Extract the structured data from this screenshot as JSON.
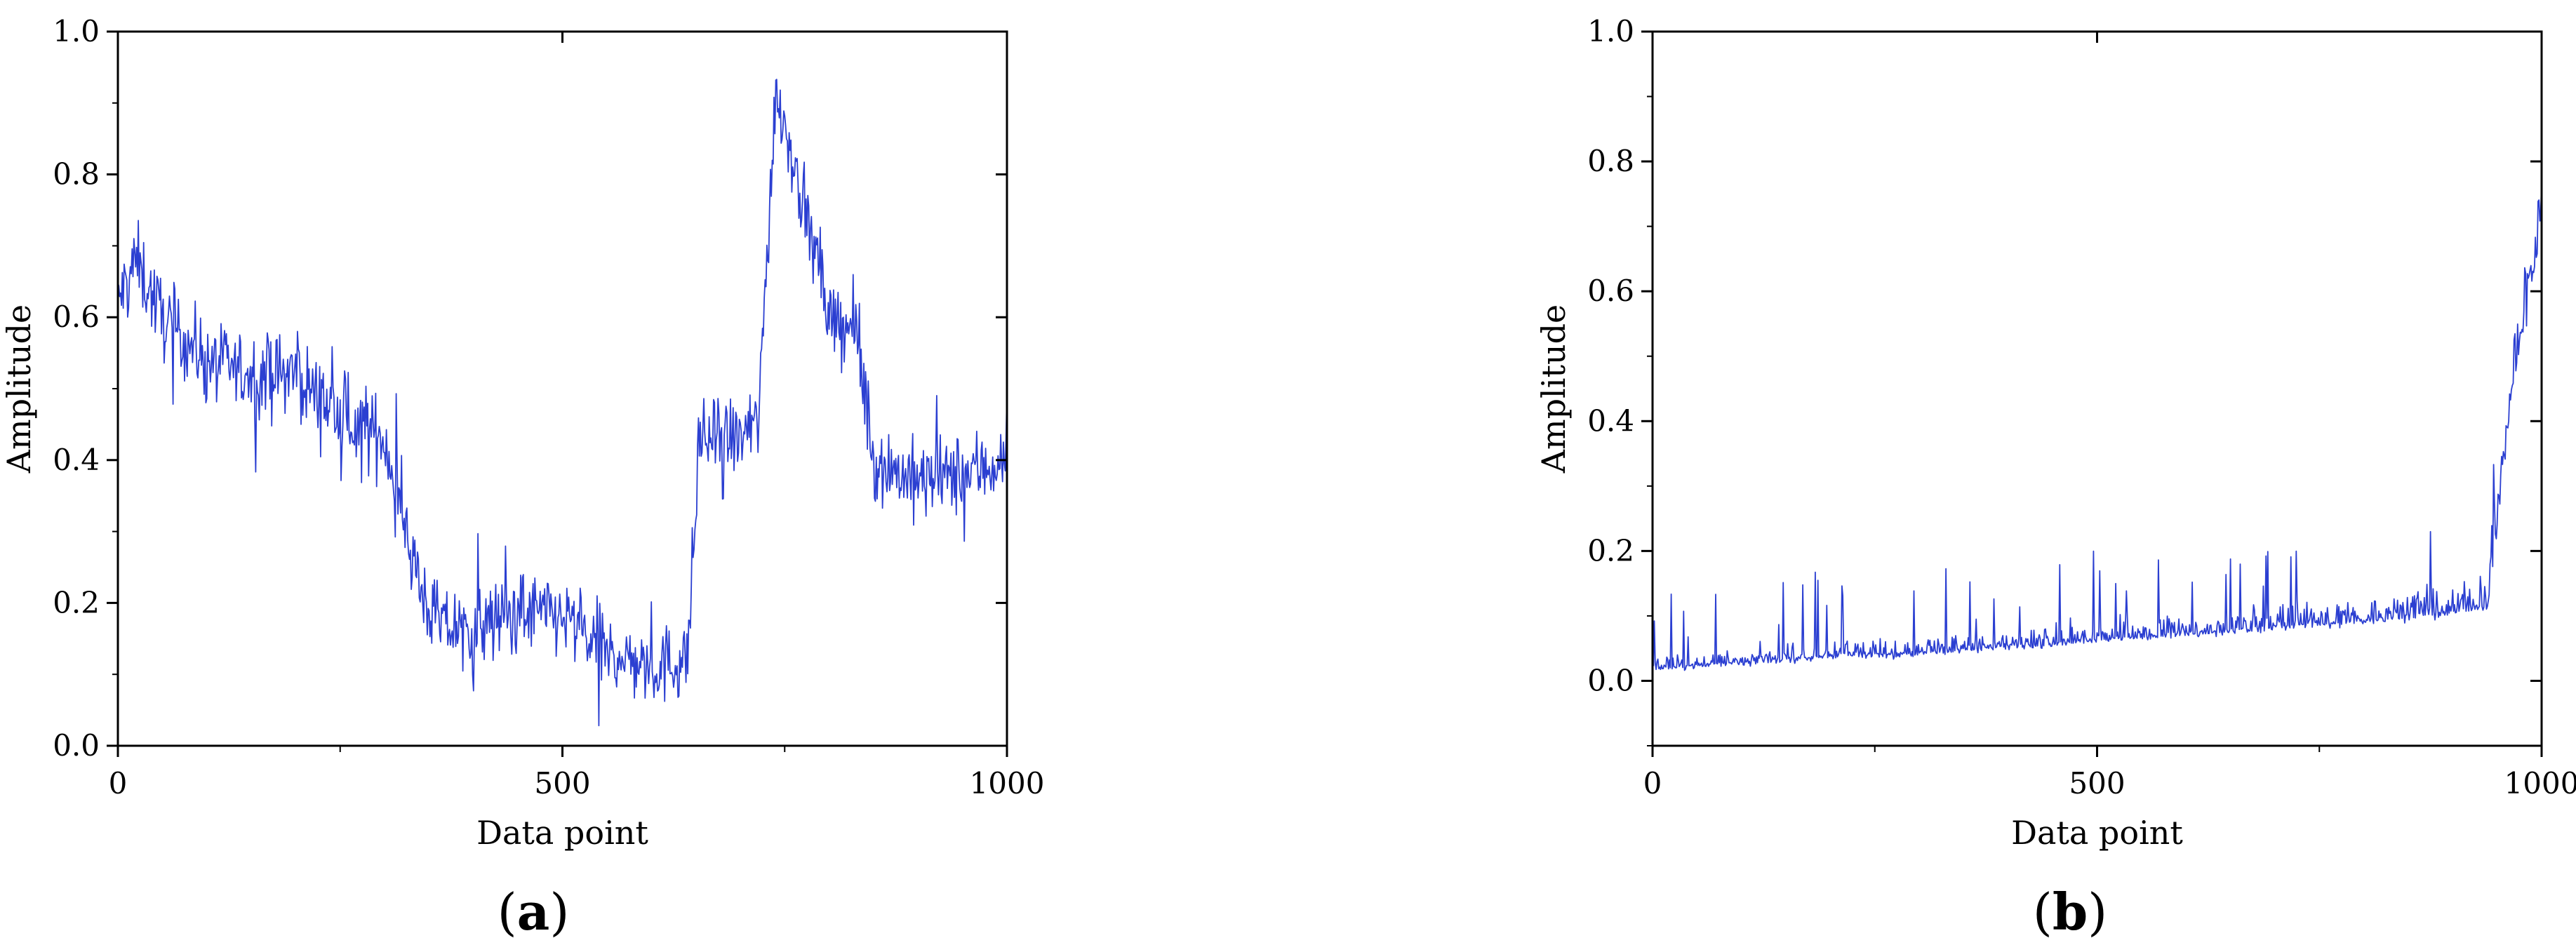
{
  "chart_data": [
    {
      "type": "line",
      "panel_label": "a",
      "xlabel": "Data point",
      "ylabel": "Amplitude",
      "xlim": [
        0,
        1000
      ],
      "ylim": [
        0,
        1.0
      ],
      "xticks": [
        0,
        500,
        1000
      ],
      "yticks": [
        0.0,
        0.2,
        0.4,
        0.6,
        0.8,
        1.0
      ],
      "ytick_labels": [
        "0.0",
        "0.2",
        "0.4",
        "0.6",
        "0.8",
        "1.0"
      ],
      "line_color": "#2b3fd1",
      "grid": false,
      "signal_outline": {
        "x": [
          0,
          20,
          50,
          100,
          150,
          200,
          250,
          300,
          320,
          340,
          360,
          400,
          450,
          500,
          550,
          600,
          640,
          655,
          700,
          720,
          740,
          760,
          800,
          830,
          850,
          900,
          950,
          1000
        ],
        "y": [
          0.62,
          0.68,
          0.6,
          0.54,
          0.52,
          0.52,
          0.46,
          0.43,
          0.33,
          0.22,
          0.17,
          0.16,
          0.19,
          0.18,
          0.13,
          0.11,
          0.12,
          0.43,
          0.43,
          0.45,
          0.92,
          0.82,
          0.6,
          0.58,
          0.4,
          0.37,
          0.38,
          0.4
        ]
      }
    },
    {
      "type": "line",
      "panel_label": "b",
      "xlabel": "Data point",
      "ylabel": "Amplitude",
      "xlim": [
        0,
        1000
      ],
      "ylim": [
        -0.1,
        1.0
      ],
      "xticks": [
        0,
        500,
        1000
      ],
      "yticks": [
        0.0,
        0.2,
        0.4,
        0.6,
        0.8,
        1.0
      ],
      "ytick_labels": [
        "0.0",
        "0.2",
        "0.4",
        "0.6",
        "0.8",
        "1.0"
      ],
      "line_color": "#2b3fd1",
      "grid": false,
      "signal_outline": {
        "x": [
          0,
          100,
          200,
          300,
          400,
          500,
          600,
          700,
          800,
          900,
          940,
          955,
          970,
          985,
          1000
        ],
        "y": [
          0.02,
          0.03,
          0.04,
          0.045,
          0.055,
          0.065,
          0.075,
          0.085,
          0.095,
          0.11,
          0.12,
          0.32,
          0.5,
          0.6,
          0.7
        ]
      }
    }
  ]
}
